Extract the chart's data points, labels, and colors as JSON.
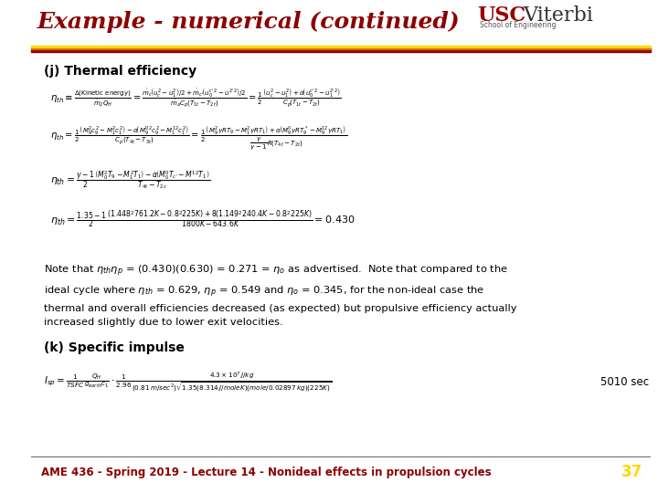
{
  "title": "Example - numerical (continued)",
  "title_color": "#8B0000",
  "bg_color": "#FFFFFF",
  "header_bar_colors": [
    "#990000",
    "#CC6600",
    "#FFD700"
  ],
  "section_j": "(j) Thermal efficiency",
  "section_k": "(k) Specific impulse",
  "footer_text": "AME 436 - Spring 2019 - Lecture 14 - Nonideal effects in propulsion cycles",
  "footer_color": "#8B0000",
  "page_number": "37",
  "page_color": "#FFD700"
}
